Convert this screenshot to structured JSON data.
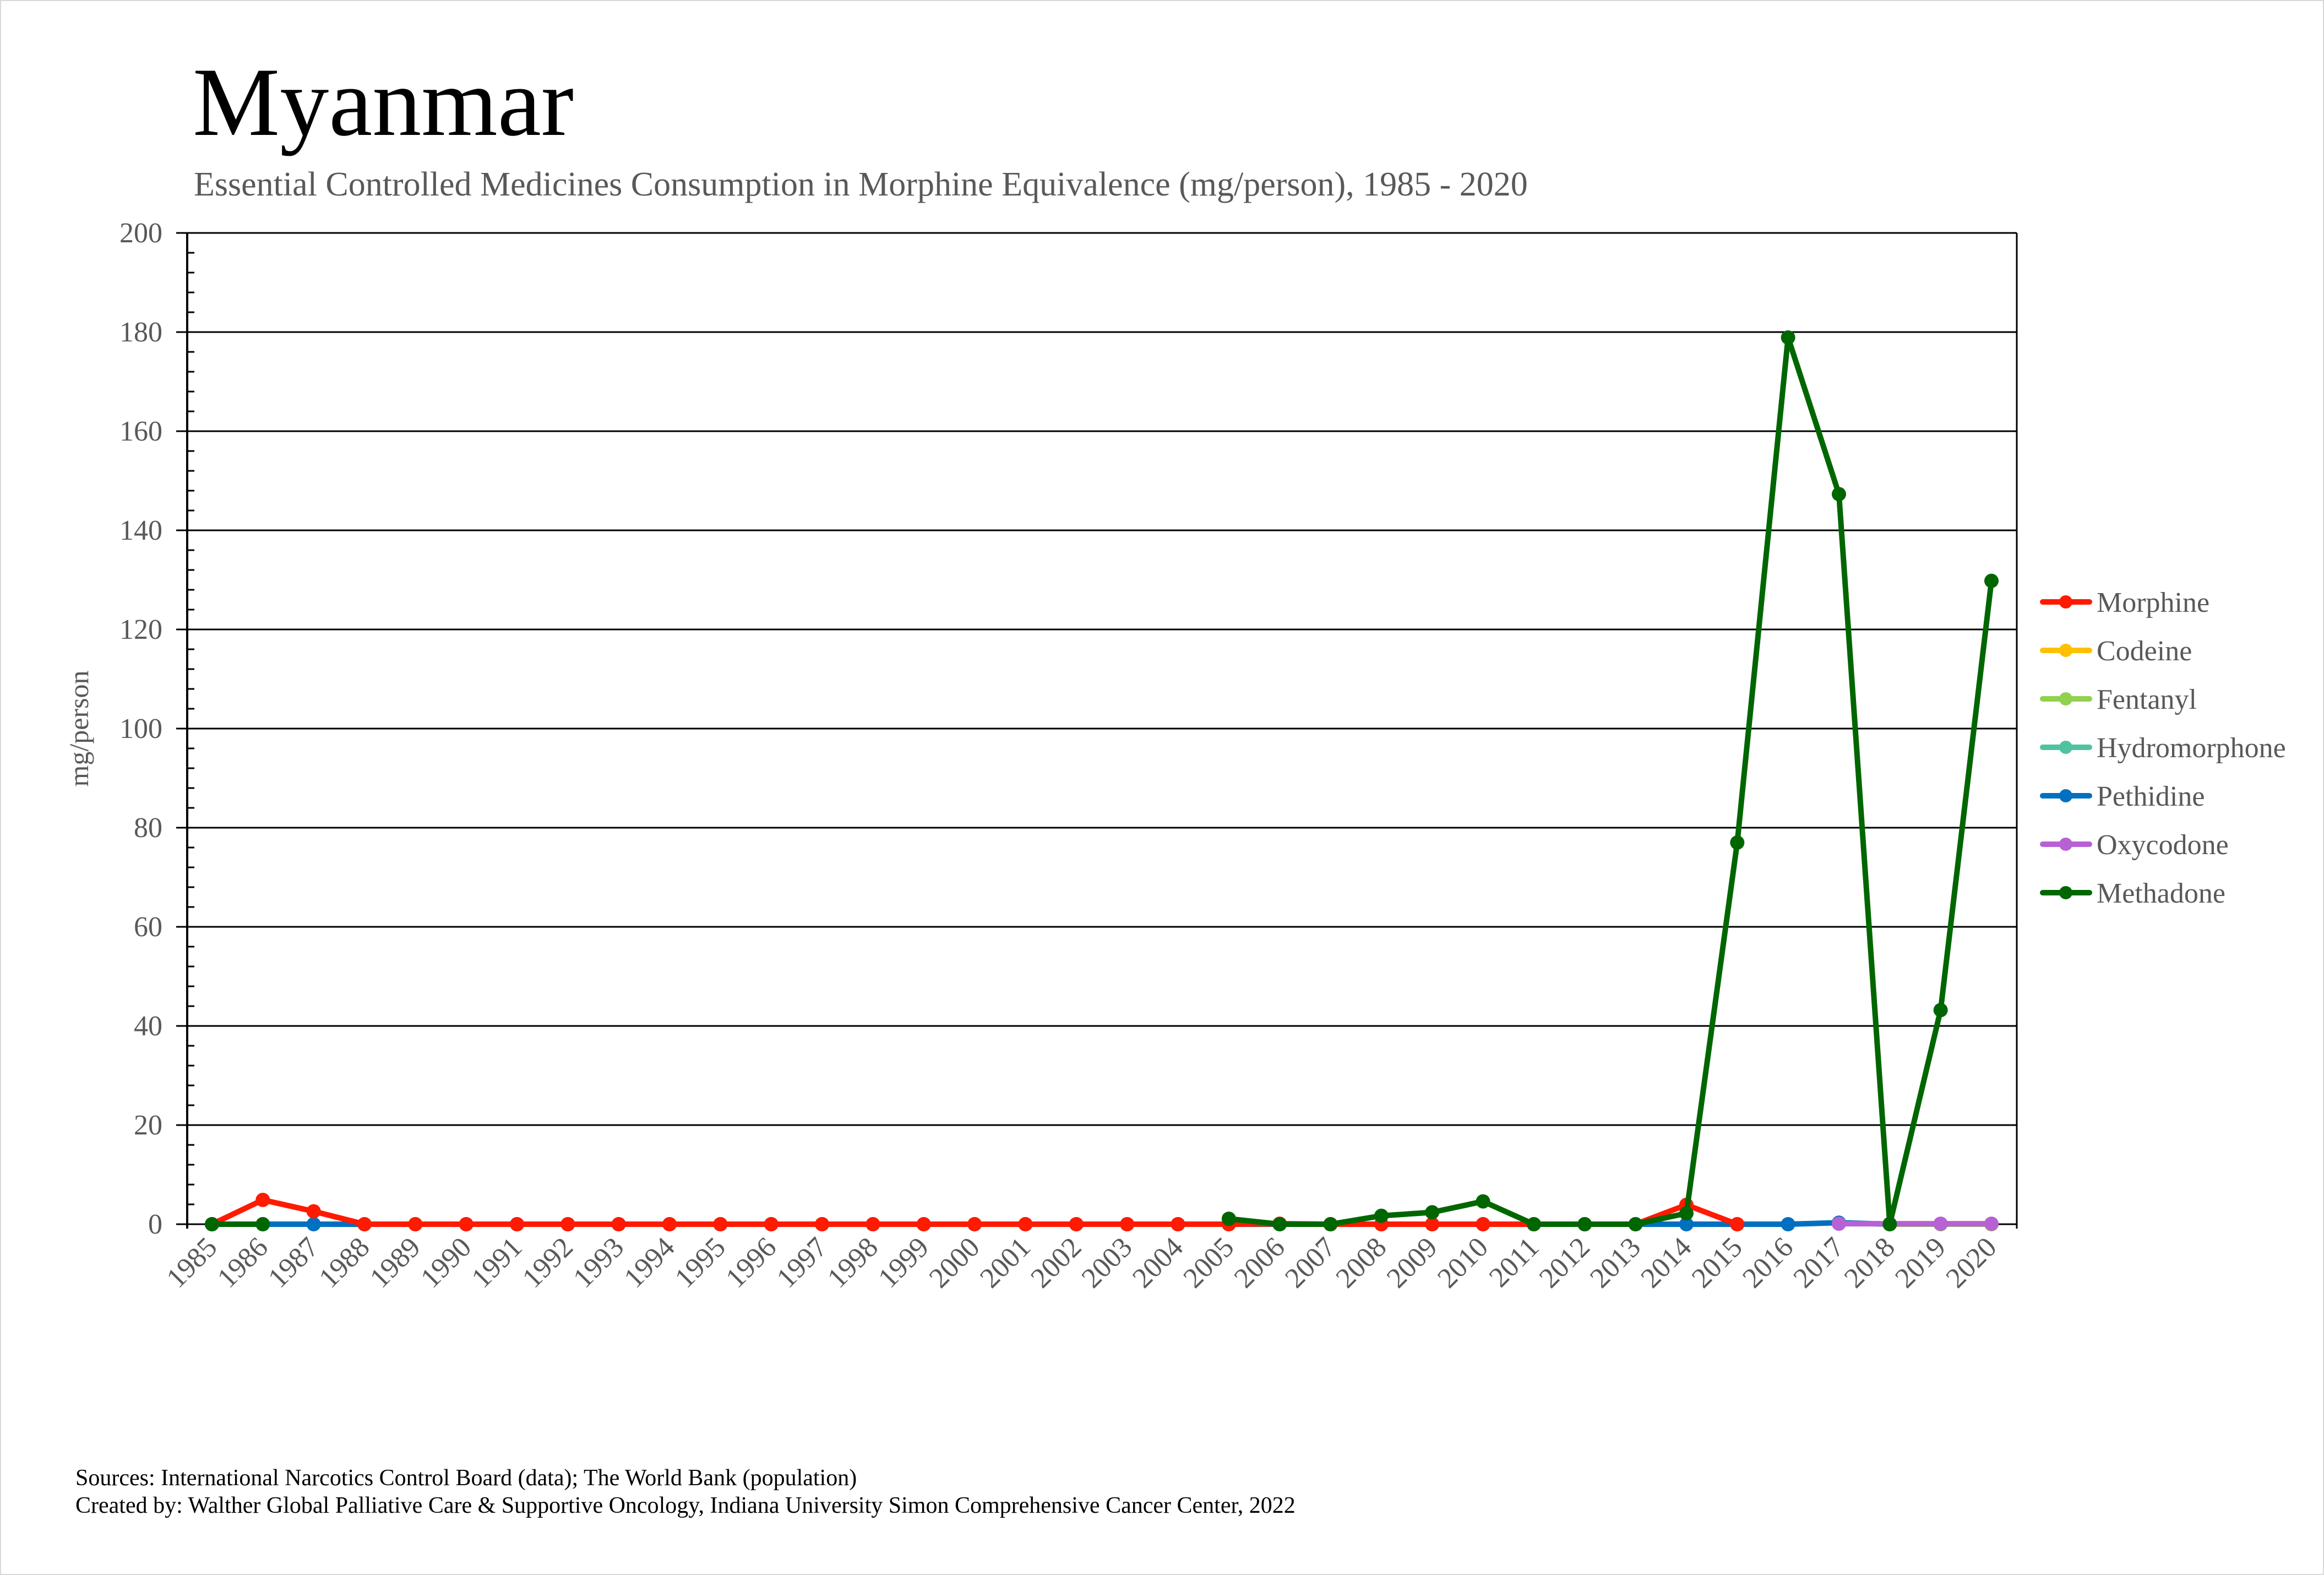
{
  "chart_data": {
    "type": "line",
    "title": "Myanmar",
    "subtitle": "Essential Controlled Medicines Consumption in Morphine Equivalence (mg/person), 1985 - 2020",
    "xlabel": "",
    "ylabel": "mg/person",
    "ylim": [
      0,
      200
    ],
    "yticks": [
      0,
      20,
      40,
      60,
      80,
      100,
      120,
      140,
      160,
      180,
      200
    ],
    "y_minor_step": 4,
    "grid": true,
    "legend_position": "right",
    "categories": [
      "1985",
      "1986",
      "1987",
      "1988",
      "1989",
      "1990",
      "1991",
      "1992",
      "1993",
      "1994",
      "1995",
      "1996",
      "1997",
      "1998",
      "1999",
      "2000",
      "2001",
      "2002",
      "2003",
      "2004",
      "2005",
      "2006",
      "2007",
      "2008",
      "2009",
      "2010",
      "2011",
      "2012",
      "2013",
      "2014",
      "2015",
      "2016",
      "2017",
      "2018",
      "2019",
      "2020"
    ],
    "series": [
      {
        "name": "Morphine",
        "color": "#FF1A00",
        "values": [
          0,
          4.9,
          2.6,
          0,
          0,
          0,
          0,
          0,
          0,
          0,
          0,
          0,
          0,
          0,
          0,
          0,
          0,
          0,
          0,
          0,
          0,
          0.1,
          0,
          0,
          0,
          0,
          0,
          0,
          0,
          3.9,
          0,
          null,
          null,
          null,
          null,
          null
        ]
      },
      {
        "name": "Codeine",
        "color": "#FFC000",
        "values": [
          null,
          null,
          null,
          null,
          null,
          null,
          null,
          null,
          null,
          null,
          null,
          null,
          null,
          null,
          null,
          null,
          null,
          null,
          null,
          null,
          null,
          null,
          null,
          null,
          null,
          null,
          null,
          null,
          null,
          null,
          null,
          null,
          null,
          0,
          0,
          0
        ]
      },
      {
        "name": "Fentanyl",
        "color": "#92D050",
        "values": [
          null,
          null,
          null,
          null,
          null,
          null,
          null,
          null,
          null,
          null,
          null,
          null,
          null,
          null,
          null,
          null,
          null,
          null,
          null,
          null,
          null,
          null,
          null,
          null,
          null,
          null,
          null,
          null,
          null,
          null,
          null,
          null,
          null,
          0,
          0,
          0
        ]
      },
      {
        "name": "Hydromorphone",
        "color": "#4FC3A1",
        "values": [
          null,
          null,
          null,
          null,
          null,
          null,
          null,
          null,
          null,
          null,
          null,
          null,
          null,
          null,
          null,
          null,
          null,
          null,
          null,
          null,
          null,
          null,
          null,
          null,
          null,
          null,
          null,
          null,
          null,
          null,
          null,
          null,
          null,
          null,
          null,
          null
        ]
      },
      {
        "name": "Pethidine",
        "color": "#0070C0",
        "values": [
          0,
          0,
          0,
          0,
          0,
          0,
          0,
          0,
          0,
          0,
          0,
          0,
          0,
          0,
          0,
          0,
          0,
          0,
          0,
          0,
          0,
          0,
          0,
          0,
          0,
          0,
          0,
          0,
          0,
          0,
          0,
          0,
          0.3,
          0,
          null,
          null
        ]
      },
      {
        "name": "Oxycodone",
        "color": "#B761D5",
        "values": [
          null,
          null,
          null,
          null,
          null,
          null,
          null,
          null,
          null,
          null,
          null,
          null,
          null,
          null,
          null,
          null,
          null,
          null,
          null,
          null,
          null,
          null,
          null,
          null,
          null,
          null,
          null,
          null,
          null,
          null,
          null,
          null,
          0.1,
          0.1,
          0.1,
          0.1
        ]
      },
      {
        "name": "Methadone",
        "color": "#006600",
        "values": [
          0,
          0,
          null,
          null,
          null,
          null,
          null,
          null,
          null,
          null,
          null,
          null,
          null,
          null,
          null,
          null,
          null,
          null,
          null,
          null,
          1.1,
          0,
          0,
          1.7,
          2.4,
          4.6,
          0,
          0,
          0,
          2.2,
          77,
          178.9,
          147.3,
          0,
          43.2,
          129.8
        ]
      }
    ]
  },
  "footer": {
    "sources": "Sources: International Narcotics Control Board (data); The World Bank (population)",
    "created_by": "Created by: Walther Global Palliative Care & Supportive Oncology, Indiana University Simon Comprehensive Cancer Center, 2022"
  }
}
